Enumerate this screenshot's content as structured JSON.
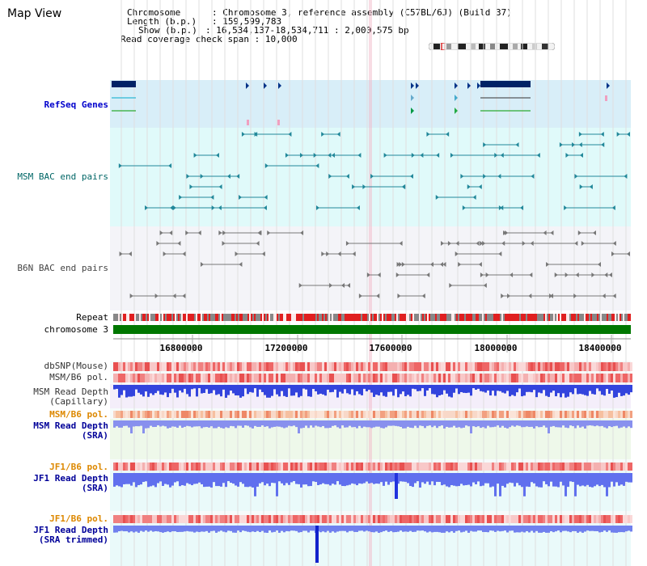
{
  "view_title": "Map View",
  "info": {
    "chromosome_key": "Chromosome",
    "chromosome_value": "Chromosome 3, reference assembly (C57BL/6J) (Build 37)",
    "length_key": "Length (b.p.)",
    "length_value": "159,599,783",
    "show_key": "Show (b.p.)",
    "show_value": "16,534,137-18,534,711 : 2,000,575 bp",
    "coverage_key": "Read coverage check span",
    "coverage_value": "10,000"
  },
  "tracks": {
    "refseq_genes": "RefSeq Genes",
    "msm_bac": "MSM BAC end pairs",
    "b6n_bac": "B6N BAC end pairs",
    "repeat": "Repeat",
    "chromosome": "chromosome 3",
    "dbsnp_mouse": "dbSNP(Mouse)",
    "msm_b6_pol_1": "MSM/B6 pol.",
    "msm_read_depth_capillary": "MSM Read Depth\n(Capillary)",
    "msm_b6_pol_2": "MSM/B6 pol.",
    "msm_read_depth_sra": "MSM Read Depth\n(SRA)",
    "jf1_b6_pol_1": "JF1/B6 pol.",
    "jf1_read_depth_sra": "JF1 Read Depth\n(SRA)",
    "jf1_b6_pol_2": "JF1/B6 pol.",
    "jf1_read_depth_sra_trimmed": "JF1 Read Depth\n(SRA trimmed)"
  },
  "scale": {
    "ticks": [
      "16800000",
      "17200000",
      "17600000",
      "18000000",
      "18400000"
    ]
  },
  "colors": {
    "refseq_label": "#0000cc",
    "msm_bac_label": "#006666",
    "b6n_bac_label": "#444444",
    "pol_label_orange": "#dd8800",
    "depth_label_blue": "#000099",
    "chromosome_bar": "#007700",
    "refseq_band": "#d8eef8",
    "msm_band": "#e0fafa",
    "b6n_band": "#f4f4f8"
  }
}
